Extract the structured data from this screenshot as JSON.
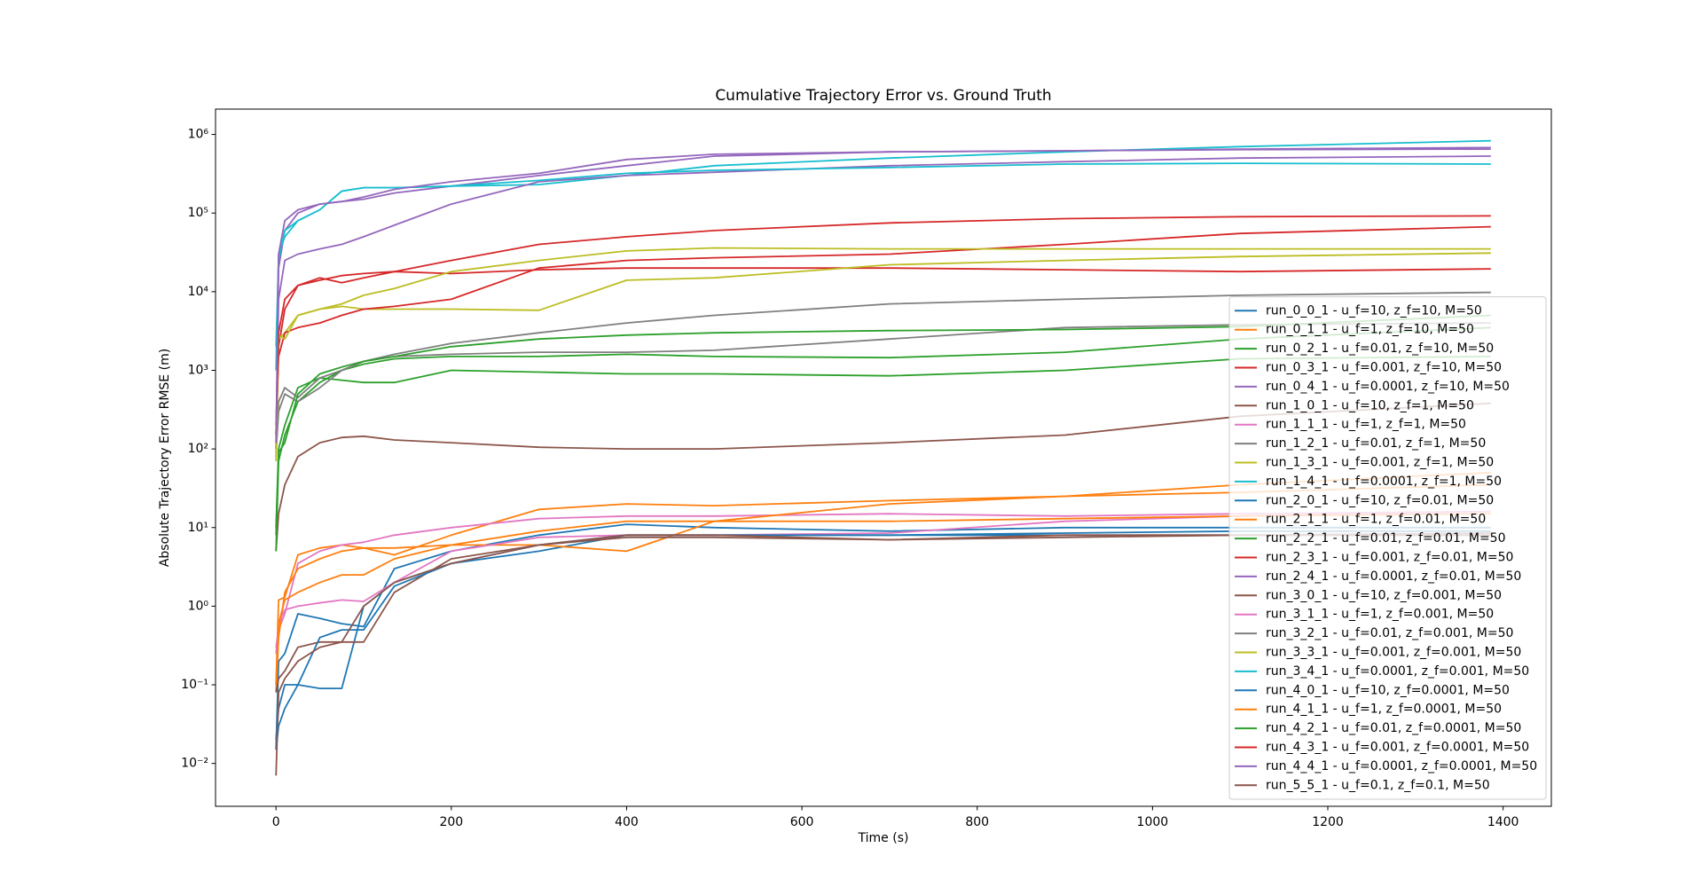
{
  "chart_data": {
    "type": "line",
    "title": "Cumulative Trajectory Error vs. Ground Truth",
    "xlabel": "Time (s)",
    "ylabel": "Absolute Trajectory Error RMSE (m)",
    "yscale": "log",
    "legend": "lower right",
    "xlim": [
      -69,
      1455
    ],
    "ylim": [
      0.00285,
      2100000
    ],
    "xticks": [
      0,
      200,
      400,
      600,
      800,
      1000,
      1200,
      1400
    ],
    "yticks": [
      {
        "value": 0.01,
        "label": "10⁻²"
      },
      {
        "value": 0.1,
        "label": "10⁻¹"
      },
      {
        "value": 1,
        "label": "10⁰"
      },
      {
        "value": 10,
        "label": "10¹"
      },
      {
        "value": 100,
        "label": "10²"
      },
      {
        "value": 1000,
        "label": "10³"
      },
      {
        "value": 10000,
        "label": "10⁴"
      },
      {
        "value": 100000,
        "label": "10⁵"
      },
      {
        "value": 1000000,
        "label": "10⁶"
      }
    ],
    "x": [
      0,
      3,
      10,
      25,
      50,
      75,
      100,
      135,
      200,
      300,
      400,
      500,
      700,
      900,
      1100,
      1386
    ],
    "series": [
      {
        "name": "run_0_0_1 - u_f=10, z_f=10, M=50",
        "color": "#1f77b4",
        "values": [
          0.015,
          0.2,
          0.25,
          0.8,
          0.7,
          0.6,
          0.55,
          3,
          5,
          8,
          11,
          10,
          9,
          10,
          10,
          10
        ]
      },
      {
        "name": "run_0_1_1 - u_f=1, z_f=10, M=50",
        "color": "#ff7f0e",
        "values": [
          0.1,
          1.2,
          1.3,
          4.5,
          5.5,
          6,
          5.5,
          4.5,
          8,
          17,
          20,
          19,
          22,
          25,
          35,
          50
        ]
      },
      {
        "name": "run_0_2_1 - u_f=0.01, z_f=10, M=50",
        "color": "#2ca02c",
        "values": [
          10,
          100,
          200,
          600,
          800,
          750,
          700,
          700,
          1000,
          950,
          900,
          900,
          850,
          1000,
          1400,
          1500
        ]
      },
      {
        "name": "run_0_3_1 - u_f=0.001, z_f=10, M=50",
        "color": "#d62728",
        "values": [
          100,
          2000,
          6000,
          12000,
          15000,
          13000,
          15000,
          18000,
          17000,
          19000,
          20000,
          20000,
          20000,
          19000,
          18000,
          19500
        ]
      },
      {
        "name": "run_0_4_1 - u_f=0.0001, z_f=10, M=50",
        "color": "#9467bd",
        "values": [
          100,
          20000,
          60000,
          100000,
          130000,
          140000,
          150000,
          180000,
          220000,
          300000,
          400000,
          530000,
          600000,
          620000,
          650000,
          680000
        ]
      },
      {
        "name": "run_1_0_1 - u_f=10, z_f=1, M=50",
        "color": "#8c564b",
        "values": [
          5,
          15,
          35,
          80,
          120,
          140,
          145,
          130,
          120,
          105,
          100,
          100,
          120,
          150,
          260,
          380
        ]
      },
      {
        "name": "run_1_1_1 - u_f=1, z_f=1, M=50",
        "color": "#e377c2",
        "values": [
          0.3,
          0.5,
          0.8,
          3.5,
          5,
          6,
          6.5,
          8,
          10,
          13,
          14,
          14,
          15,
          14,
          15,
          16
        ]
      },
      {
        "name": "run_1_2_1 - u_f=0.01, z_f=1, M=50",
        "color": "#7f7f7f",
        "values": [
          80,
          400,
          600,
          450,
          800,
          1000,
          1300,
          1600,
          2200,
          3000,
          4000,
          5000,
          7000,
          8000,
          9000,
          9800
        ]
      },
      {
        "name": "run_1_3_1 - u_f=0.001, z_f=1, M=50",
        "color": "#bcbd22",
        "values": [
          100,
          2500,
          3000,
          5000,
          6000,
          6500,
          6000,
          6000,
          6000,
          5800,
          14000,
          15000,
          22000,
          25000,
          28000,
          31000
        ]
      },
      {
        "name": "run_1_4_1 - u_f=0.0001, z_f=1, M=50",
        "color": "#17becf",
        "values": [
          1000,
          30000,
          50000,
          80000,
          110000,
          190000,
          210000,
          210000,
          220000,
          230000,
          300000,
          400000,
          500000,
          600000,
          700000,
          830000
        ]
      },
      {
        "name": "run_2_0_1 - u_f=10, z_f=0.01, M=50",
        "color": "#1f77b4",
        "values": [
          0.02,
          0.05,
          0.1,
          0.1,
          0.09,
          0.09,
          1.0,
          2.0,
          3.5,
          5,
          8,
          8,
          8,
          8,
          8,
          8
        ]
      },
      {
        "name": "run_2_1_1 - u_f=1, z_f=0.01, M=50",
        "color": "#ff7f0e",
        "values": [
          0.08,
          0.4,
          1.5,
          3,
          4,
          5,
          5.5,
          5.5,
          6,
          6,
          5,
          12,
          20,
          25,
          28,
          35
        ]
      },
      {
        "name": "run_2_2_1 - u_f=0.01, z_f=0.01, M=50",
        "color": "#2ca02c",
        "values": [
          5,
          70,
          150,
          400,
          700,
          1000,
          1200,
          1400,
          1500,
          1500,
          1600,
          1500,
          1450,
          1700,
          2500,
          3500
        ]
      },
      {
        "name": "run_2_3_1 - u_f=0.001, z_f=0.01, M=50",
        "color": "#d62728",
        "values": [
          200,
          1500,
          3000,
          3500,
          4000,
          5000,
          6000,
          6500,
          8000,
          20000,
          25000,
          27000,
          30000,
          40000,
          55000,
          67000
        ]
      },
      {
        "name": "run_2_4_1 - u_f=0.0001, z_f=0.01, M=50",
        "color": "#9467bd",
        "values": [
          150,
          8000,
          25000,
          30000,
          35000,
          40000,
          50000,
          70000,
          130000,
          250000,
          300000,
          330000,
          400000,
          450000,
          500000,
          530000
        ]
      },
      {
        "name": "run_3_0_1 - u_f=10, z_f=0.001, M=50",
        "color": "#8c564b",
        "values": [
          0.08,
          0.12,
          0.15,
          0.3,
          0.35,
          0.35,
          0.35,
          1.5,
          4,
          6,
          7.5,
          7.5,
          7,
          8,
          8,
          8
        ]
      },
      {
        "name": "run_3_1_1 - u_f=1, z_f=0.001, M=50",
        "color": "#e377c2",
        "values": [
          0.25,
          0.6,
          0.9,
          1.0,
          1.1,
          1.2,
          1.15,
          2,
          5,
          7.5,
          8,
          8,
          8.5,
          12,
          14,
          16
        ]
      },
      {
        "name": "run_3_2_1 - u_f=0.01, z_f=0.001, M=50",
        "color": "#7f7f7f",
        "values": [
          90,
          300,
          500,
          400,
          600,
          1000,
          1300,
          1500,
          1600,
          1700,
          1700,
          1800,
          2500,
          3500,
          3800,
          4000
        ]
      },
      {
        "name": "run_3_3_1 - u_f=0.001, z_f=0.001, M=50",
        "color": "#bcbd22",
        "values": [
          70,
          2800,
          2500,
          5000,
          6000,
          7000,
          9000,
          11000,
          18000,
          25000,
          33000,
          36000,
          35000,
          35000,
          35000,
          35000
        ]
      },
      {
        "name": "run_3_4_1 - u_f=0.0001, z_f=0.001, M=50",
        "color": "#17becf",
        "values": [
          2000,
          25000,
          60000,
          80000,
          110000,
          190000,
          210000,
          210000,
          220000,
          260000,
          320000,
          350000,
          380000,
          420000,
          430000,
          420000
        ]
      },
      {
        "name": "run_4_0_1 - u_f=10, z_f=0.0001, M=50",
        "color": "#1f77b4",
        "values": [
          0.015,
          0.03,
          0.05,
          0.1,
          0.4,
          0.5,
          0.5,
          1.8,
          3.5,
          6,
          8,
          8,
          8,
          8.5,
          9,
          9
        ]
      },
      {
        "name": "run_4_1_1 - u_f=1, z_f=0.0001, M=50",
        "color": "#ff7f0e",
        "values": [
          0.1,
          0.6,
          1.2,
          1.5,
          2,
          2.5,
          2.5,
          4,
          6,
          9,
          12,
          12,
          12,
          13,
          14,
          15
        ]
      },
      {
        "name": "run_4_2_1 - u_f=0.01, z_f=0.0001, M=50",
        "color": "#2ca02c",
        "values": [
          8,
          90,
          120,
          500,
          900,
          1100,
          1300,
          1500,
          2000,
          2500,
          2800,
          3000,
          3200,
          3300,
          3600,
          5000
        ]
      },
      {
        "name": "run_4_3_1 - u_f=0.001, z_f=0.0001, M=50",
        "color": "#d62728",
        "values": [
          150,
          3000,
          8000,
          12000,
          14000,
          16000,
          17000,
          18000,
          25000,
          40000,
          50000,
          60000,
          75000,
          85000,
          90000,
          92000
        ]
      },
      {
        "name": "run_4_4_1 - u_f=0.0001, z_f=0.0001, M=50",
        "color": "#9467bd",
        "values": [
          120,
          30000,
          80000,
          110000,
          130000,
          140000,
          160000,
          200000,
          250000,
          320000,
          480000,
          560000,
          600000,
          620000,
          640000,
          650000
        ]
      },
      {
        "name": "run_5_5_1 - u_f=0.1, z_f=0.1, M=50",
        "color": "#8c564b",
        "values": [
          0.007,
          0.08,
          0.12,
          0.2,
          0.3,
          0.35,
          1.0,
          2.0,
          3.5,
          6,
          8,
          8,
          7,
          7.5,
          8,
          8.5
        ]
      }
    ]
  }
}
